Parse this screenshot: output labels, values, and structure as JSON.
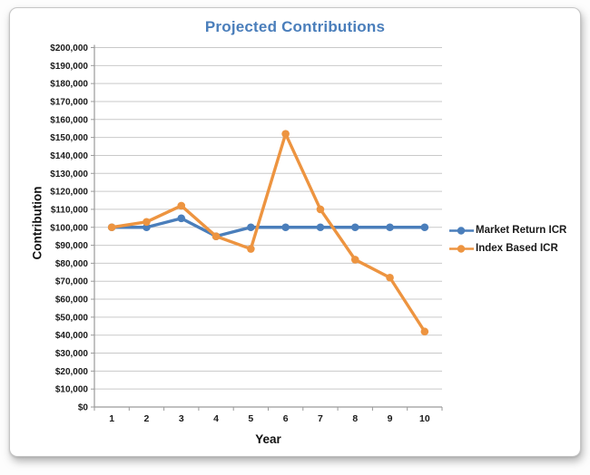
{
  "chart_data": {
    "type": "line",
    "title": "Projected Contributions",
    "title_color": "#4A7EBB",
    "xlabel": "Year",
    "ylabel": "Contribution",
    "categories": [
      "1",
      "2",
      "3",
      "4",
      "5",
      "6",
      "7",
      "8",
      "9",
      "10"
    ],
    "series": [
      {
        "name": "Market Return ICR",
        "color": "#4A7EBB",
        "values": [
          100000,
          100000,
          105000,
          95000,
          100000,
          100000,
          100000,
          100000,
          100000,
          100000
        ]
      },
      {
        "name": "Index Based ICR",
        "color": "#ED9440",
        "values": [
          100000,
          103000,
          112000,
          95000,
          88000,
          152000,
          110000,
          82000,
          72000,
          42000
        ]
      }
    ],
    "ylim": [
      0,
      200000
    ],
    "ytick_step": 10000,
    "ytick_labels": [
      "$0",
      "$10,000",
      "$20,000",
      "$30,000",
      "$40,000",
      "$50,000",
      "$60,000",
      "$70,000",
      "$80,000",
      "$90,000",
      "$100,000",
      "$110,000",
      "$120,000",
      "$130,000",
      "$140,000",
      "$150,000",
      "$160,000",
      "$170,000",
      "$180,000",
      "$190,000",
      "$200,000"
    ],
    "grid": true,
    "grid_color": "#c9c9c9",
    "axis_color": "#9a9a9a",
    "tick_label_color": "#1a1a1a",
    "legend_position": "right",
    "marker_shape": "round"
  }
}
